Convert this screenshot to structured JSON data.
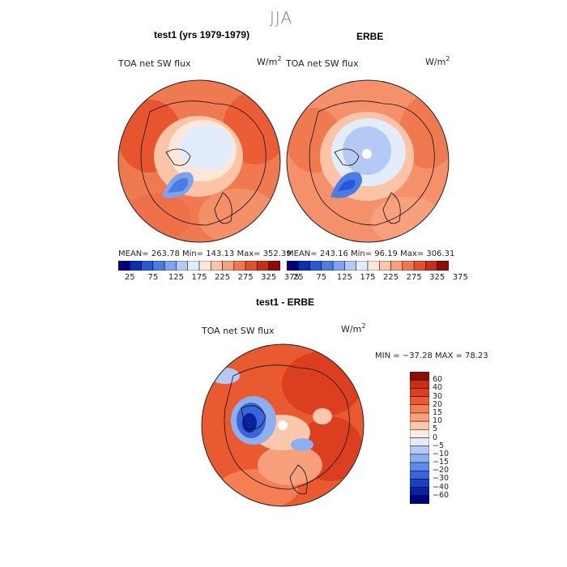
{
  "title": "JJA",
  "panels": [
    {
      "heading": "test1 (yrs 1979-1979)",
      "variable": "TOA net SW flux",
      "units_base": "W/m",
      "units_exp": "2",
      "stats": "MEAN= 263.78   Min= 143.13   Max= 352.39"
    },
    {
      "heading": "ERBE",
      "variable": "TOA net SW flux",
      "units_base": "W/m",
      "units_exp": "2",
      "stats": "MEAN= 243.16   Min=  96.19   Max= 306.31"
    }
  ],
  "colorbar_top": {
    "colors": [
      "#00007a",
      "#0c2fb0",
      "#2658d8",
      "#4a7ce6",
      "#7ea3ee",
      "#b4c9f4",
      "#e2ecfb",
      "#fde7d9",
      "#fbc4a6",
      "#f8a07c",
      "#f2774f",
      "#e5502e",
      "#c92e17",
      "#8e0c03"
    ],
    "tick_labels": [
      "25",
      "75",
      "125",
      "175",
      "225",
      "275",
      "325",
      "375"
    ]
  },
  "diff": {
    "heading": "test1 - ERBE",
    "variable": "TOA net SW flux",
    "units_base": "W/m",
    "units_exp": "2",
    "stats": "MIN = −37.28  MAX =  78.23",
    "colors": [
      "#8e0c03",
      "#c92e17",
      "#dc3f1f",
      "#ea5a30",
      "#f47f55",
      "#f8a07c",
      "#fbc8ab",
      "#fdebdf",
      "#e2ecfb",
      "#b4c9f4",
      "#8bb0f0",
      "#5f8ae8",
      "#3a64dc",
      "#1c3fc4",
      "#0a22a0",
      "#00007a"
    ],
    "tick_labels": [
      "60",
      "40",
      "30",
      "20",
      "15",
      "10",
      "5",
      "0",
      "−5",
      "−10",
      "−15",
      "−20",
      "−30",
      "−40",
      "−60"
    ]
  }
}
